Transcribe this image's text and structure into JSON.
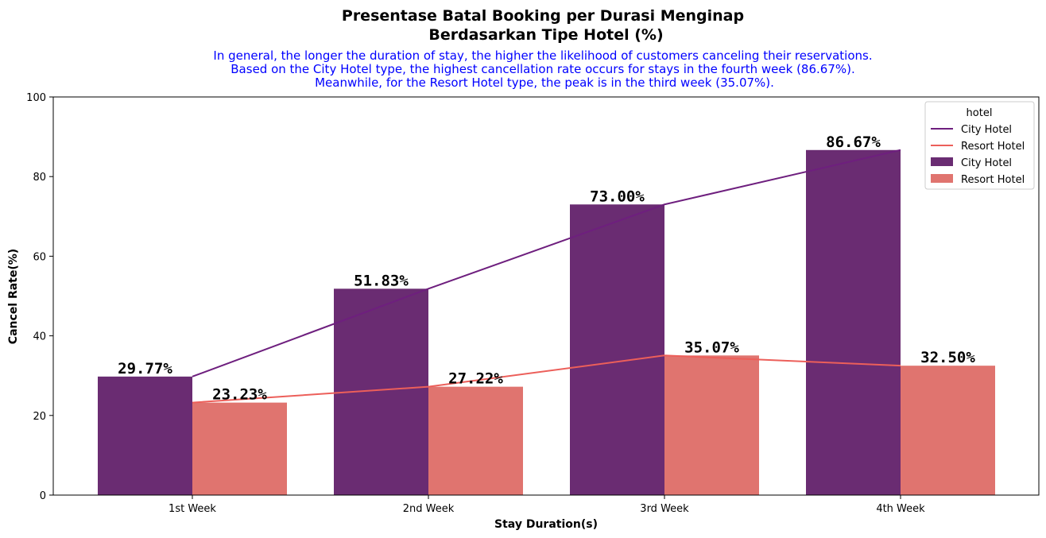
{
  "chart_data": {
    "type": "bar",
    "title_lines": [
      "Presentase Batal Booking per Durasi Menginap",
      "Berdasarkan Tipe Hotel  (%)"
    ],
    "subtitle_lines": [
      "In general, the longer the duration of stay, the higher the likelihood of customers canceling their reservations.",
      "Based on the City Hotel type, the highest cancellation rate occurs for stays in the fourth week (86.67%).",
      "Meanwhile, for the Resort Hotel type, the peak is in the third week (35.07%)."
    ],
    "xlabel": "Stay Duration(s)",
    "ylabel": "Cancel Rate(%)",
    "ylim": [
      0,
      100
    ],
    "yticks": [
      "0",
      "20",
      "40",
      "60",
      "80",
      "100"
    ],
    "categories": [
      "1st Week",
      "2nd Week",
      "3rd Week",
      "4th Week"
    ],
    "series": [
      {
        "name": "City Hotel",
        "values": [
          29.77,
          51.83,
          73.0,
          86.67
        ],
        "labels": [
          "29.77%",
          "51.83%",
          "73.00%",
          "86.67%"
        ],
        "bar_color": "#6a2c72",
        "line_color": "#6e1f7e"
      },
      {
        "name": "Resort Hotel",
        "values": [
          23.23,
          27.22,
          35.07,
          32.5
        ],
        "labels": [
          "23.23%",
          "27.22%",
          "35.07%",
          "32.50%"
        ],
        "bar_color": "#e0746f",
        "line_color": "#ec5f5a"
      }
    ],
    "legend": {
      "title": "hotel",
      "position": "top-right",
      "entries": [
        "City Hotel",
        "Resort Hotel",
        "City Hotel",
        "Resort Hotel"
      ]
    },
    "grid": false
  }
}
